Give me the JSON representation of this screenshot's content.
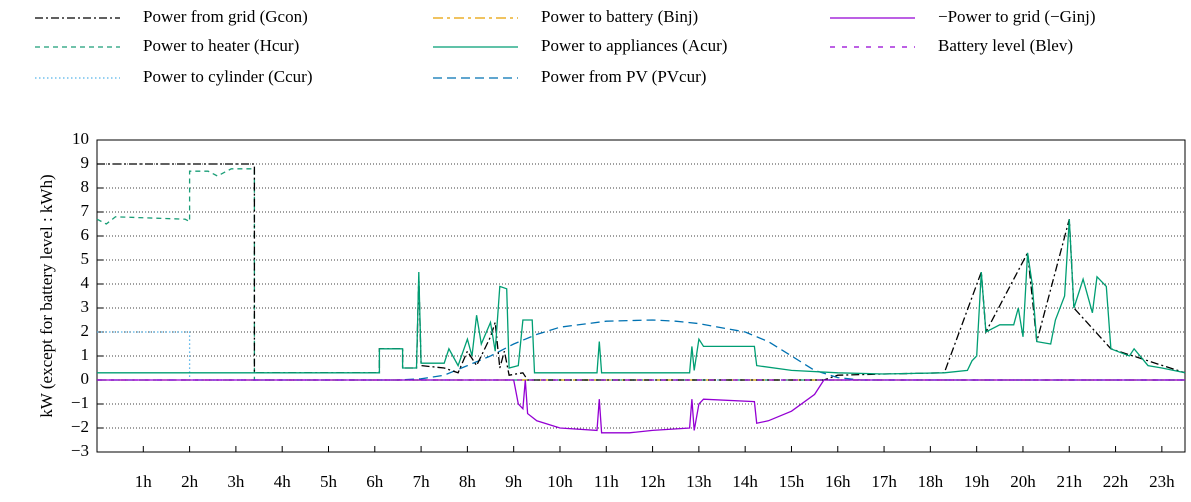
{
  "chart_data": {
    "type": "line",
    "y_label": "kW (except for battery level : kWh)",
    "xlim": [
      0,
      23.5
    ],
    "xticks": [
      {
        "value": 1,
        "label": "1h"
      },
      {
        "value": 2,
        "label": "2h"
      },
      {
        "value": 3,
        "label": "3h"
      },
      {
        "value": 4,
        "label": "4h"
      },
      {
        "value": 5,
        "label": "5h"
      },
      {
        "value": 6,
        "label": "6h"
      },
      {
        "value": 7,
        "label": "7h"
      },
      {
        "value": 8,
        "label": "8h"
      },
      {
        "value": 9,
        "label": "9h"
      },
      {
        "value": 10,
        "label": "10h"
      },
      {
        "value": 11,
        "label": "11h"
      },
      {
        "value": 12,
        "label": "12h"
      },
      {
        "value": 13,
        "label": "13h"
      },
      {
        "value": 14,
        "label": "14h"
      },
      {
        "value": 15,
        "label": "15h"
      },
      {
        "value": 16,
        "label": "16h"
      },
      {
        "value": 17,
        "label": "17h"
      },
      {
        "value": 18,
        "label": "18h"
      },
      {
        "value": 19,
        "label": "19h"
      },
      {
        "value": 20,
        "label": "20h"
      },
      {
        "value": 21,
        "label": "21h"
      },
      {
        "value": 22,
        "label": "22h"
      },
      {
        "value": 23,
        "label": "23h"
      }
    ],
    "ylim": [
      -3,
      10
    ],
    "yticks": [
      {
        "value": -3,
        "label": "−3"
      },
      {
        "value": -2,
        "label": "−2"
      },
      {
        "value": -1,
        "label": "−1"
      },
      0,
      1,
      2,
      3,
      4,
      5,
      6,
      7,
      8,
      9,
      10
    ],
    "grid": true,
    "series": [
      {
        "name": "Power from grid (Gcon)",
        "color": "#000000",
        "dash": "8 3 2 3",
        "x": [
          0,
          3.4,
          3.4,
          6.1,
          6.1,
          6.6,
          6.6,
          6.9,
          6.95,
          7.0,
          7.5,
          7.8,
          8.0,
          8.2,
          8.5,
          8.6,
          8.7,
          8.8,
          8.9,
          9.2,
          9.3,
          15.7,
          16.0,
          17.0,
          18.3,
          19.1,
          19.2,
          20.1,
          20.3,
          21.0,
          21.1,
          21.9,
          23.5
        ],
        "values": [
          9,
          9,
          0.3,
          0.3,
          1.3,
          1.3,
          0.5,
          0.5,
          4.3,
          0.6,
          0.5,
          0.3,
          1.2,
          0.6,
          1.8,
          2.4,
          0.5,
          1.2,
          0.2,
          0.3,
          0,
          0,
          0.2,
          0.25,
          0.3,
          4.5,
          2.0,
          5.3,
          1.6,
          6.7,
          3.0,
          1.3,
          0.3
        ]
      },
      {
        "name": "Power to battery (Binj)",
        "color": "#e69f00",
        "dash": "10 4 3 4",
        "x": [
          0,
          23.5
        ],
        "values": [
          0,
          0
        ]
      },
      {
        "name": "−Power to grid (−Ginj)",
        "color": "#9400d3",
        "dash": "",
        "x": [
          0,
          9.0,
          9.1,
          9.2,
          9.25,
          9.3,
          9.5,
          10,
          10.8,
          10.85,
          10.9,
          11.5,
          12,
          12.8,
          12.85,
          12.9,
          13.0,
          13.1,
          14.2,
          14.25,
          14.5,
          15,
          15.5,
          15.7,
          23.5
        ],
        "values": [
          0,
          0,
          -1.0,
          -1.2,
          0,
          -1.4,
          -1.7,
          -2.0,
          -2.1,
          -0.8,
          -2.2,
          -2.2,
          -2.1,
          -2.0,
          -0.8,
          -2.1,
          -1.0,
          -0.8,
          -0.9,
          -1.8,
          -1.7,
          -1.3,
          -0.6,
          0,
          0
        ]
      },
      {
        "name": "Power to heater (Hcur)",
        "color": "#1a9e77",
        "dash": "5 4",
        "x": [
          0,
          0.2,
          0.4,
          1.9,
          2.0,
          2.0,
          2.4,
          2.6,
          2.9,
          3.4,
          3.4,
          23.5
        ],
        "values": [
          6.7,
          6.5,
          6.8,
          6.7,
          6.6,
          8.7,
          8.7,
          8.5,
          8.8,
          8.8,
          0,
          0
        ]
      },
      {
        "name": "Power to appliances (Acur)",
        "color": "#009e73",
        "dash": "",
        "x": [
          0,
          3.4,
          6.1,
          6.1,
          6.6,
          6.6,
          6.9,
          6.95,
          7.0,
          7.5,
          7.6,
          7.8,
          8.0,
          8.1,
          8.2,
          8.3,
          8.5,
          8.6,
          8.7,
          8.85,
          8.9,
          9.1,
          9.2,
          9.4,
          9.45,
          10.8,
          10.85,
          10.9,
          12.8,
          12.85,
          12.9,
          13.0,
          13.1,
          14.2,
          14.25,
          15.0,
          16.0,
          17.0,
          18.3,
          18.8,
          18.9,
          19.0,
          19.1,
          19.2,
          19.5,
          19.8,
          19.9,
          20.0,
          20.1,
          20.2,
          20.3,
          20.6,
          20.7,
          20.9,
          21.0,
          21.1,
          21.3,
          21.5,
          21.6,
          21.8,
          21.9,
          22.3,
          22.4,
          22.7,
          23.0,
          23.5
        ],
        "values": [
          0.3,
          0.3,
          0.3,
          1.3,
          1.3,
          0.5,
          0.5,
          4.5,
          0.7,
          0.7,
          1.3,
          0.6,
          1.7,
          1.0,
          2.7,
          1.5,
          2.4,
          1.2,
          3.9,
          3.8,
          0.5,
          0.6,
          2.5,
          2.5,
          0.3,
          0.3,
          1.6,
          0.3,
          0.3,
          1.4,
          0.4,
          1.7,
          1.4,
          1.4,
          0.6,
          0.4,
          0.3,
          0.25,
          0.3,
          0.4,
          0.8,
          1.0,
          4.5,
          2.0,
          2.3,
          2.3,
          3.0,
          1.8,
          5.3,
          4.0,
          1.6,
          1.5,
          2.5,
          3.5,
          6.7,
          3.0,
          4.2,
          2.8,
          4.3,
          3.9,
          1.3,
          1.0,
          1.3,
          0.6,
          0.5,
          0.3
        ]
      },
      {
        "name": "Battery level (Blev)",
        "color": "#9400d3",
        "dash": "5 7",
        "x": [
          0,
          23.5
        ],
        "values": [
          0,
          0
        ]
      },
      {
        "name": "Power to cylinder (Ccur)",
        "color": "#56b4e9",
        "dash": "1.5 2.5",
        "x": [
          0,
          2.0,
          2.0,
          23.5
        ],
        "values": [
          2,
          2,
          0,
          0
        ]
      },
      {
        "name": "Power from PV (PVcur)",
        "color": "#0072b2",
        "dash": "9 5",
        "x": [
          0,
          6.5,
          7.0,
          7.5,
          8,
          8.5,
          9,
          9.5,
          10,
          11,
          12,
          12.5,
          13,
          14,
          14.5,
          15,
          15.5,
          16,
          16.5,
          23.5
        ],
        "values": [
          0,
          0,
          0.05,
          0.2,
          0.6,
          1.0,
          1.5,
          1.9,
          2.2,
          2.45,
          2.5,
          2.45,
          2.35,
          2.0,
          1.6,
          1.0,
          0.4,
          0.1,
          0,
          0
        ]
      }
    ]
  }
}
